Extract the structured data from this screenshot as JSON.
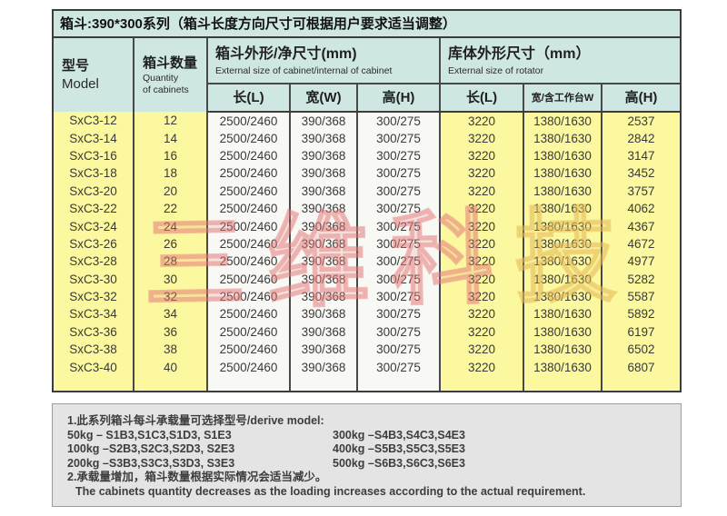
{
  "title": "箱斗:390*300系列（箱斗长度方向尺寸可根据用户要求适当调整）",
  "table": {
    "model_header": {
      "zh": "型号",
      "en": "Model"
    },
    "quantity_header": {
      "zh": "箱斗数量",
      "en1": "Quantity",
      "en2": "of cabinets"
    },
    "cabinet_group": {
      "zh": "箱斗外形/净尺寸(mm)",
      "en": "External size of cabinet/internal of cabinet"
    },
    "rotator_group": {
      "zh": "库体外形尺寸（mm）",
      "en": "External size of rotator"
    },
    "sub_headers": [
      "长(L)",
      "宽(W)",
      "高(H)",
      "长(L)",
      "宽/含工作台W",
      "高(H)"
    ],
    "rows": [
      [
        "SxC3-12",
        "12",
        "2500/2460",
        "390/368",
        "300/275",
        "3220",
        "1380/1630",
        "2537"
      ],
      [
        "SxC3-14",
        "14",
        "2500/2460",
        "390/368",
        "300/275",
        "3220",
        "1380/1630",
        "2842"
      ],
      [
        "SxC3-16",
        "16",
        "2500/2460",
        "390/368",
        "300/275",
        "3220",
        "1380/1630",
        "3147"
      ],
      [
        "SxC3-18",
        "18",
        "2500/2460",
        "390/368",
        "300/275",
        "3220",
        "1380/1630",
        "3452"
      ],
      [
        "SxC3-20",
        "20",
        "2500/2460",
        "390/368",
        "300/275",
        "3220",
        "1380/1630",
        "3757"
      ],
      [
        "SxC3-22",
        "22",
        "2500/2460",
        "390/368",
        "300/275",
        "3220",
        "1380/1630",
        "4062"
      ],
      [
        "SxC3-24",
        "24",
        "2500/2460",
        "390/368",
        "300/275",
        "3220",
        "1380/1630",
        "4367"
      ],
      [
        "SxC3-26",
        "26",
        "2500/2460",
        "390/368",
        "300/275",
        "3220",
        "1380/1630",
        "4672"
      ],
      [
        "SxC3-28",
        "28",
        "2500/2460",
        "390/368",
        "300/275",
        "3220",
        "1380/1630",
        "4977"
      ],
      [
        "SxC3-30",
        "30",
        "2500/2460",
        "390/368",
        "300/275",
        "3220",
        "1380/1630",
        "5282"
      ],
      [
        "SxC3-32",
        "32",
        "2500/2460",
        "390/368",
        "300/275",
        "3220",
        "1380/1630",
        "5587"
      ],
      [
        "SxC3-34",
        "34",
        "2500/2460",
        "390/368",
        "300/275",
        "3220",
        "1380/1630",
        "5892"
      ],
      [
        "SxC3-36",
        "36",
        "2500/2460",
        "390/368",
        "300/275",
        "3220",
        "1380/1630",
        "6197"
      ],
      [
        "SxC3-38",
        "38",
        "2500/2460",
        "390/368",
        "300/275",
        "3220",
        "1380/1630",
        "6502"
      ],
      [
        "SxC3-40",
        "40",
        "2500/2460",
        "390/368",
        "300/275",
        "3220",
        "1380/1630",
        "6807"
      ]
    ]
  },
  "watermark": {
    "part1": "三维科",
    "part2": "技"
  },
  "notes": {
    "line1": "1.此系列箱斗每斗承载量可选择型号/derive model:",
    "left": [
      "50kg – S1B3,S1C3,S1D3, S1E3",
      "100kg –S2B3,S2C3,S2D3, S2E3",
      "200kg –S3B3,S3C3,S3D3, S3E3"
    ],
    "right": [
      "300kg –S4B3,S4C3,S4E3",
      "400kg –S5B3,S5C3,S5E3",
      "500kg –S6B3,S6C3,S6E3"
    ],
    "line2_zh": "2.承载量增加，箱斗数量根据实际情况会适当减少。",
    "line2_en": "The cabinets quantity decreases as the loading increases according to the actual requirement."
  },
  "colors": {
    "header_bg": "#cfe7e3",
    "yellow_cell": "#fbf89f",
    "white_cell": "#f8f8f5",
    "border": "#3c3c3c",
    "notes_bg": "#e4e4e4",
    "watermark_red": "#e47676",
    "watermark_gold": "#e6b95a"
  }
}
